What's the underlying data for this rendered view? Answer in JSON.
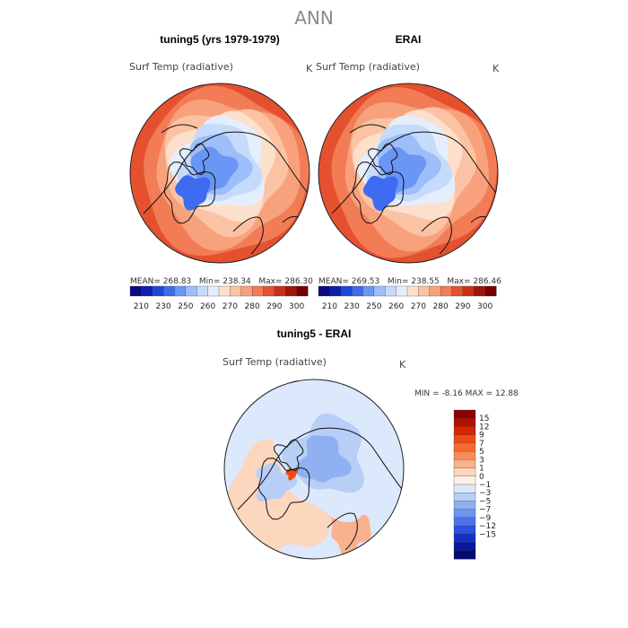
{
  "page": {
    "title": "ANN"
  },
  "panels": [
    {
      "title": "tuning5 (yrs 1979-1979)",
      "variable": "Surf Temp (radiative)",
      "units": "K",
      "stats": {
        "mean_label": "MEAN=",
        "mean": "268.83",
        "min_label": "Min=",
        "min": "238.34",
        "max_label": "Max=",
        "max": "286.30"
      }
    },
    {
      "title": "ERAI",
      "variable": "Surf Temp (radiative)",
      "units": "K",
      "stats": {
        "mean_label": "MEAN=",
        "mean": "269.53",
        "min_label": "Min=",
        "min": "238.55",
        "max_label": "Max=",
        "max": "286.46"
      }
    },
    {
      "title": "tuning5 - ERAI",
      "variable": "Surf Temp (radiative)",
      "units": "K",
      "stats": {
        "min_label": "MIN =",
        "min": "-8.16",
        "max_label": "MAX =",
        "max": "12.88"
      }
    }
  ],
  "chart_data": [
    {
      "type": "heatmap",
      "projection": "north-polar-stereographic",
      "title": "tuning5 (yrs 1979-1979)",
      "variable": "Surf Temp (radiative)",
      "units": "K",
      "mean": 268.83,
      "min": 238.34,
      "max": 286.3,
      "colorbar": {
        "orientation": "horizontal",
        "tick_labels": [
          "210",
          "230",
          "250",
          "260",
          "270",
          "280",
          "290",
          "300"
        ],
        "colors": [
          "#0a0a80",
          "#0c1fb0",
          "#1e47d8",
          "#3d6cf0",
          "#6a96f5",
          "#9dbef8",
          "#c6dbfb",
          "#e4eefc",
          "#fde0cc",
          "#fbc3a4",
          "#f7a27c",
          "#f27c56",
          "#e5512f",
          "#c9301a",
          "#a0150c",
          "#780000"
        ]
      }
    },
    {
      "type": "heatmap",
      "projection": "north-polar-stereographic",
      "title": "ERAI",
      "variable": "Surf Temp (radiative)",
      "units": "K",
      "mean": 269.53,
      "min": 238.55,
      "max": 286.46,
      "colorbar": {
        "orientation": "horizontal",
        "tick_labels": [
          "210",
          "230",
          "250",
          "260",
          "270",
          "280",
          "290",
          "300"
        ],
        "colors": [
          "#0a0a80",
          "#0c1fb0",
          "#1e47d8",
          "#3d6cf0",
          "#6a96f5",
          "#9dbef8",
          "#c6dbfb",
          "#e4eefc",
          "#fde0cc",
          "#fbc3a4",
          "#f7a27c",
          "#f27c56",
          "#e5512f",
          "#c9301a",
          "#a0150c",
          "#780000"
        ]
      }
    },
    {
      "type": "heatmap",
      "projection": "north-polar-stereographic",
      "title": "tuning5 - ERAI",
      "variable": "Surf Temp (radiative)",
      "units": "K",
      "min": -8.16,
      "max": 12.88,
      "colorbar": {
        "orientation": "vertical",
        "tick_labels": [
          "15",
          "12",
          "9",
          "7",
          "5",
          "3",
          "1",
          "0",
          "−1",
          "−3",
          "−5",
          "−7",
          "−9",
          "−12",
          "−15"
        ],
        "colors": [
          "#8b0000",
          "#b50f00",
          "#d92600",
          "#ef4a12",
          "#f56a30",
          "#f88d5a",
          "#fab18e",
          "#fcd6bd",
          "#fdf0e4",
          "#dce8fb",
          "#b7cff7",
          "#8fb1f2",
          "#6d94ee",
          "#4b74ea",
          "#2c50e0",
          "#1430c8",
          "#0a15a0",
          "#040a70"
        ]
      }
    }
  ]
}
